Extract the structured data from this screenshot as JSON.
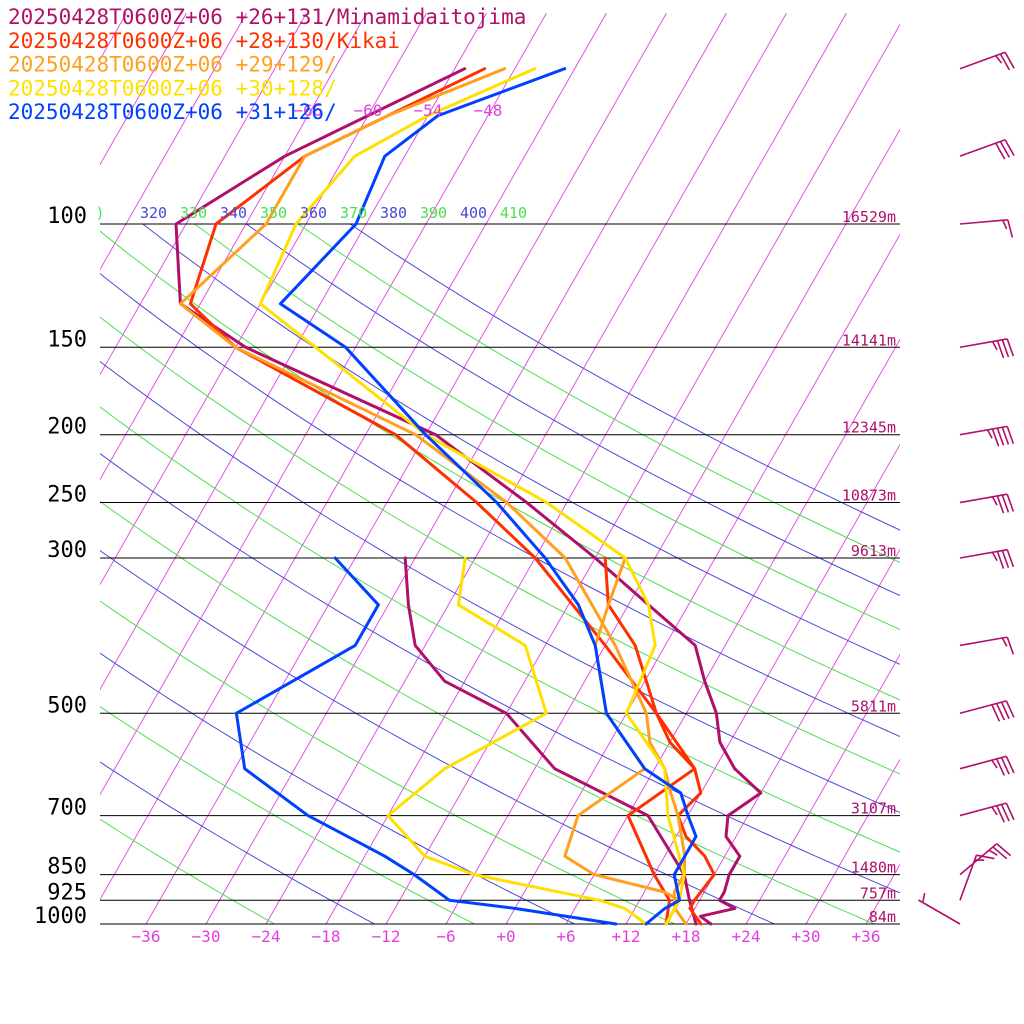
{
  "chart_data": {
    "type": "line",
    "chart_kind": "skew-T log-p diagram",
    "title_lines": [
      {
        "text": "20250428T0600Z+06 +26+131/Minamidaitojima",
        "color": "#b0106a"
      },
      {
        "text": "20250428T0600Z+06 +28+130/Kikai",
        "color": "#ff3000"
      },
      {
        "text": "20250428T0600Z+06 +29+129/",
        "color": "#ffa020"
      },
      {
        "text": "20250428T0600Z+06 +30+128/",
        "color": "#ffe000"
      },
      {
        "text": "20250428T0600Z+06 +31+126/",
        "color": "#0040ff"
      }
    ],
    "pressure_axis": {
      "levels": [
        100,
        150,
        200,
        250,
        300,
        500,
        700,
        850,
        925,
        1000
      ],
      "labels": [
        "100",
        "150",
        "200",
        "250",
        "300",
        "500",
        "700",
        "850",
        "925",
        "1000"
      ],
      "scale": "log",
      "range": [
        100,
        1000
      ]
    },
    "height_labels": [
      {
        "p": 100,
        "text": "16529m"
      },
      {
        "p": 150,
        "text": "14141m"
      },
      {
        "p": 200,
        "text": "12345m"
      },
      {
        "p": 250,
        "text": "10873m"
      },
      {
        "p": 300,
        "text": "9613m"
      },
      {
        "p": 500,
        "text": "5811m"
      },
      {
        "p": 700,
        "text": "3107m"
      },
      {
        "p": 850,
        "text": "1480m"
      },
      {
        "p": 925,
        "text": "757m"
      },
      {
        "p": 1000,
        "text": "84m"
      }
    ],
    "temperature_axis": {
      "ticks": [
        -36,
        -30,
        -24,
        -18,
        -12,
        -6,
        0,
        6,
        12,
        18,
        24,
        30,
        36
      ],
      "labels": [
        "−36",
        "−30",
        "−24",
        "−18",
        "−12",
        "−6",
        "+0",
        "+6",
        "+12",
        "+18",
        "+24",
        "+30",
        "+36"
      ],
      "unit": "°C"
    },
    "upper_isotherm_labels": [
      "−66",
      "−60",
      "−54",
      "−48"
    ],
    "theta_labels": [
      {
        "text": ")",
        "color": "#4ce04c"
      },
      {
        "text": "320",
        "color": "#4a4ad8"
      },
      {
        "text": "330",
        "color": "#4ce04c"
      },
      {
        "text": "340",
        "color": "#4a4ad8"
      },
      {
        "text": "350",
        "color": "#4ce04c"
      },
      {
        "text": "360",
        "color": "#4a4ad8"
      },
      {
        "text": "370",
        "color": "#4ce04c"
      },
      {
        "text": "380",
        "color": "#4a4ad8"
      },
      {
        "text": "390",
        "color": "#4ce04c"
      },
      {
        "text": "400",
        "color": "#4a4ad8"
      },
      {
        "text": "410",
        "color": "#4ce04c"
      }
    ],
    "colors": {
      "isotherm": "#e040e0",
      "isobar": "#000000",
      "theta_blue": "#4a4ad8",
      "theta_green": "#4ce04c",
      "barb": "#b0106a"
    },
    "series": [
      {
        "name": "Minamidaitojima",
        "color": "#b0106a",
        "temperature": [
          [
            1000,
            20.5
          ],
          [
            975,
            19
          ],
          [
            950,
            22
          ],
          [
            925,
            20
          ],
          [
            900,
            20
          ],
          [
            850,
            19.5
          ],
          [
            800,
            19.5
          ],
          [
            750,
            17
          ],
          [
            700,
            16
          ],
          [
            650,
            18
          ],
          [
            600,
            14
          ],
          [
            550,
            11
          ],
          [
            500,
            9
          ],
          [
            450,
            6
          ],
          [
            400,
            3
          ],
          [
            350,
            -4
          ],
          [
            300,
            -12
          ],
          [
            250,
            -22
          ],
          [
            200,
            -35
          ],
          [
            150,
            -59
          ],
          [
            130,
            -68
          ],
          [
            100,
            -73
          ],
          [
            80,
            -66
          ],
          [
            70,
            -60
          ],
          [
            60,
            -53
          ]
        ],
        "dewpoint": [
          [
            1000,
            19
          ],
          [
            925,
            17
          ],
          [
            850,
            15
          ],
          [
            700,
            8
          ],
          [
            600,
            -4
          ],
          [
            500,
            -12
          ],
          [
            450,
            -20
          ],
          [
            400,
            -25
          ],
          [
            350,
            -28
          ],
          [
            300,
            -31
          ]
        ]
      },
      {
        "name": "Kikai",
        "color": "#ff3000",
        "temperature": [
          [
            1000,
            19.5
          ],
          [
            950,
            17.5
          ],
          [
            925,
            17.5
          ],
          [
            850,
            18
          ],
          [
            800,
            16
          ],
          [
            750,
            13
          ],
          [
            700,
            11
          ],
          [
            650,
            12
          ],
          [
            600,
            10
          ],
          [
            550,
            6
          ],
          [
            500,
            3
          ],
          [
            400,
            -6
          ],
          [
            300,
            -18
          ],
          [
            250,
            -27
          ],
          [
            200,
            -39
          ],
          [
            150,
            -60
          ],
          [
            130,
            -67
          ],
          [
            100,
            -69
          ],
          [
            80,
            -64
          ],
          [
            70,
            -58
          ],
          [
            60,
            -51
          ]
        ],
        "dewpoint": [
          [
            1000,
            16
          ],
          [
            925,
            15
          ],
          [
            850,
            12
          ],
          [
            700,
            6
          ],
          [
            600,
            10
          ],
          [
            500,
            3
          ],
          [
            400,
            -3
          ],
          [
            350,
            -8
          ],
          [
            300,
            -11
          ]
        ]
      },
      {
        "name": "+29+129",
        "color": "#ffa020",
        "temperature": [
          [
            1000,
            18
          ],
          [
            950,
            16
          ],
          [
            925,
            15.5
          ],
          [
            900,
            15
          ],
          [
            850,
            15
          ],
          [
            800,
            14
          ],
          [
            700,
            11
          ],
          [
            650,
            9
          ],
          [
            600,
            7
          ],
          [
            550,
            4
          ],
          [
            500,
            2
          ],
          [
            400,
            -5
          ],
          [
            300,
            -15
          ],
          [
            250,
            -24
          ],
          [
            200,
            -37
          ],
          [
            150,
            -60
          ],
          [
            130,
            -68
          ],
          [
            100,
            -64
          ],
          [
            80,
            -64
          ],
          [
            70,
            -58
          ],
          [
            60,
            -49
          ]
        ],
        "dewpoint": [
          [
            1000,
            16
          ],
          [
            925,
            16
          ],
          [
            900,
            14
          ],
          [
            850,
            6
          ],
          [
            800,
            2
          ],
          [
            700,
            1
          ],
          [
            600,
            5
          ],
          [
            500,
            -2
          ],
          [
            400,
            -7
          ],
          [
            350,
            -8
          ],
          [
            300,
            -9
          ]
        ]
      },
      {
        "name": "+30+128",
        "color": "#ffe000",
        "temperature": [
          [
            1000,
            16
          ],
          [
            925,
            16
          ],
          [
            850,
            15
          ],
          [
            700,
            10
          ],
          [
            600,
            7
          ],
          [
            500,
            0
          ],
          [
            400,
            -1
          ],
          [
            350,
            -4
          ],
          [
            300,
            -9
          ],
          [
            250,
            -20
          ],
          [
            200,
            -36
          ],
          [
            150,
            -52
          ],
          [
            130,
            -60
          ],
          [
            100,
            -61
          ],
          [
            80,
            -59
          ],
          [
            70,
            -54
          ],
          [
            60,
            -46
          ]
        ],
        "dewpoint": [
          [
            1000,
            14
          ],
          [
            950,
            11
          ],
          [
            925,
            8
          ],
          [
            850,
            -6
          ],
          [
            800,
            -12
          ],
          [
            700,
            -18
          ],
          [
            600,
            -15
          ],
          [
            500,
            -8
          ],
          [
            400,
            -14
          ],
          [
            350,
            -23
          ],
          [
            300,
            -25
          ]
        ]
      },
      {
        "name": "+31+126",
        "color": "#0040ff",
        "temperature": [
          [
            1000,
            14
          ],
          [
            950,
            15
          ],
          [
            925,
            16
          ],
          [
            850,
            14
          ],
          [
            800,
            14
          ],
          [
            750,
            14
          ],
          [
            700,
            12
          ],
          [
            650,
            10
          ],
          [
            600,
            5
          ],
          [
            500,
            -2
          ],
          [
            400,
            -7
          ],
          [
            350,
            -11
          ],
          [
            300,
            -17
          ],
          [
            250,
            -25
          ],
          [
            200,
            -36
          ],
          [
            150,
            -49
          ],
          [
            130,
            -58
          ],
          [
            100,
            -55
          ],
          [
            80,
            -56
          ],
          [
            70,
            -53
          ],
          [
            60,
            -43
          ]
        ],
        "dewpoint": [
          [
            1000,
            11
          ],
          [
            950,
            0
          ],
          [
            925,
            -7
          ],
          [
            850,
            -12
          ],
          [
            800,
            -16
          ],
          [
            700,
            -26
          ],
          [
            600,
            -35
          ],
          [
            500,
            -39
          ],
          [
            400,
            -31
          ],
          [
            350,
            -31
          ],
          [
            300,
            -38
          ]
        ]
      }
    ],
    "wind_barbs": [
      {
        "p": 60,
        "dir": 250,
        "speed": 25
      },
      {
        "p": 80,
        "dir": 250,
        "speed": 30
      },
      {
        "p": 100,
        "dir": 265,
        "speed": 15
      },
      {
        "p": 150,
        "dir": 260,
        "speed": 35
      },
      {
        "p": 200,
        "dir": 260,
        "speed": 45
      },
      {
        "p": 250,
        "dir": 260,
        "speed": 35
      },
      {
        "p": 300,
        "dir": 260,
        "speed": 35
      },
      {
        "p": 400,
        "dir": 260,
        "speed": 15
      },
      {
        "p": 500,
        "dir": 255,
        "speed": 40
      },
      {
        "p": 600,
        "dir": 255,
        "speed": 35
      },
      {
        "p": 700,
        "dir": 255,
        "speed": 35
      },
      {
        "p": 850,
        "dir": 230,
        "speed": 25
      },
      {
        "p": 925,
        "dir": 200,
        "speed": 15
      },
      {
        "p": 1000,
        "dir": 120,
        "speed": 5
      }
    ]
  }
}
